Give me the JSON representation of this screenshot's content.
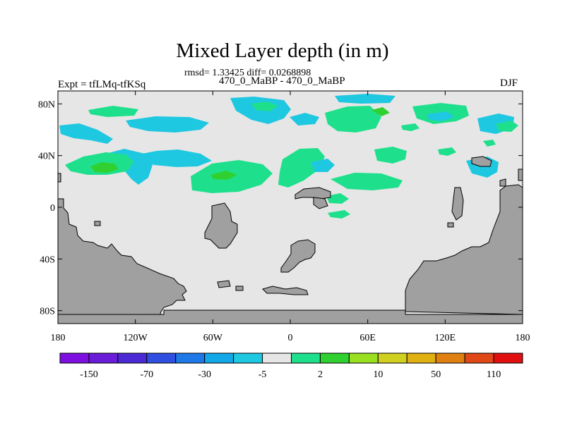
{
  "header": {
    "title": "Mixed Layer depth (in m)",
    "stats": "rmsd= 1.33425 diff= 0.0268898",
    "subtitle": "470_0_MaBP - 470_0_MaBP",
    "expt_label": "Expt = tfLMq-tfKSq",
    "season": "DJF"
  },
  "map": {
    "projection": "cylindrical-equidistant",
    "lon_range": [
      -180,
      180
    ],
    "lat_range": [
      -90,
      90
    ],
    "background_color": "#e6e6e6",
    "land_color": "#a0a0a0",
    "lat_ticks": [
      {
        "label": "80N",
        "lat": 80
      },
      {
        "label": "40N",
        "lat": 40
      },
      {
        "label": "0",
        "lat": 0
      },
      {
        "label": "40S",
        "lat": -40
      },
      {
        "label": "80S",
        "lat": -80
      }
    ],
    "lon_ticks": [
      {
        "label": "180",
        "lon": -180
      },
      {
        "label": "120W",
        "lon": -120
      },
      {
        "label": "60W",
        "lon": -60
      },
      {
        "label": "0",
        "lon": 0
      },
      {
        "label": "60E",
        "lon": 60
      },
      {
        "label": "120E",
        "lon": 120
      },
      {
        "label": "180",
        "lon": 180
      }
    ]
  },
  "colorbar": {
    "colors": [
      "#7d10e0",
      "#6a1cd8",
      "#4b2ad6",
      "#2f4fe0",
      "#1f78e8",
      "#12a8e8",
      "#1ec8e0",
      "#e6e6e6",
      "#1ee08c",
      "#30d030",
      "#98e020",
      "#d0d020",
      "#e0b010",
      "#e08010",
      "#e04818",
      "#e01010"
    ],
    "labels": [
      {
        "text": "-150",
        "index": 1
      },
      {
        "text": "-70",
        "index": 3
      },
      {
        "text": "-30",
        "index": 5
      },
      {
        "text": "-5",
        "index": 7
      },
      {
        "text": "2",
        "index": 9
      },
      {
        "text": "10",
        "index": 11
      },
      {
        "text": "50",
        "index": 13
      },
      {
        "text": "110",
        "index": 15
      }
    ]
  }
}
